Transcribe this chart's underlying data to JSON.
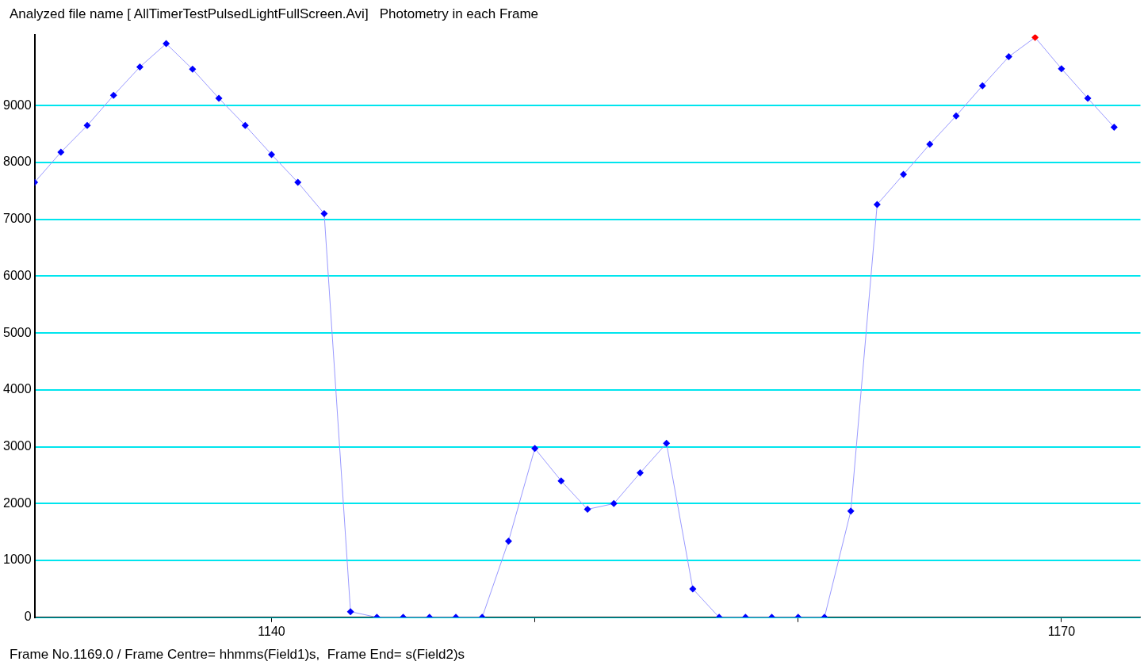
{
  "chart_data": {
    "type": "line",
    "title": "Analyzed file name [ AllTimerTestPulsedLightFullScreen.Avi]   Photometry in each Frame",
    "annotations": [
      "Frame No.1169.0 / Frame Centre= hhmms(Field1)s,  Frame End= s(Field2)s"
    ],
    "x": [
      1131,
      1132,
      1133,
      1134,
      1135,
      1136,
      1137,
      1138,
      1139,
      1140,
      1141,
      1142,
      1143,
      1144,
      1145,
      1146,
      1147,
      1148,
      1149,
      1150,
      1151,
      1152,
      1153,
      1154,
      1155,
      1156,
      1157,
      1158,
      1159,
      1160,
      1161,
      1162,
      1163,
      1164,
      1165,
      1166,
      1167,
      1168,
      1169,
      1170,
      1171,
      1172
    ],
    "series": [
      {
        "color": "#9999ff",
        "colors": [
          "#0000ff",
          "#0000ff",
          "#0000ff",
          "#0000ff",
          "#0000ff",
          "#0000ff",
          "#0000ff",
          "#0000ff",
          "#0000ff",
          "#0000ff",
          "#0000ff",
          "#0000ff",
          "#0000ff",
          "#0000ff",
          "#0000ff",
          "#0000ff",
          "#0000ff",
          "#0000ff",
          "#0000ff",
          "#0000ff",
          "#0000ff",
          "#0000ff",
          "#0000ff",
          "#0000ff",
          "#0000ff",
          "#0000ff",
          "#0000ff",
          "#0000ff",
          "#0000ff",
          "#0000ff",
          "#0000ff",
          "#0000ff",
          "#0000ff",
          "#0000ff",
          "#0000ff",
          "#0000ff",
          "#0000ff",
          "#0000ff",
          "#ff0000",
          "#0000ff",
          "#0000ff",
          "#0000ff"
        ],
        "values": [
          7650,
          8180,
          8650,
          9180,
          9680,
          10090,
          9640,
          9130,
          8650,
          8140,
          7650,
          7100,
          100,
          0,
          0,
          0,
          0,
          0,
          1340,
          2970,
          2400,
          1900,
          2000,
          2540,
          3060,
          500,
          0,
          0,
          0,
          0,
          0,
          1870,
          7260,
          7790,
          8320,
          8820,
          9350,
          9860,
          10200,
          9650,
          9130,
          8620
        ]
      }
    ],
    "xlim": [
      1131,
      1173
    ],
    "xticks": [
      1140,
      {
        "value": 1150,
        "label": null
      },
      {
        "value": 1160,
        "label": null
      },
      1170
    ],
    "ylim": [
      0,
      10250
    ],
    "yticks": [
      0,
      1000,
      2000,
      3000,
      4000,
      5000,
      6000,
      7000,
      8000,
      9000
    ],
    "grid": "y",
    "marker": "diamond",
    "line_style": "solid",
    "legend": false
  }
}
